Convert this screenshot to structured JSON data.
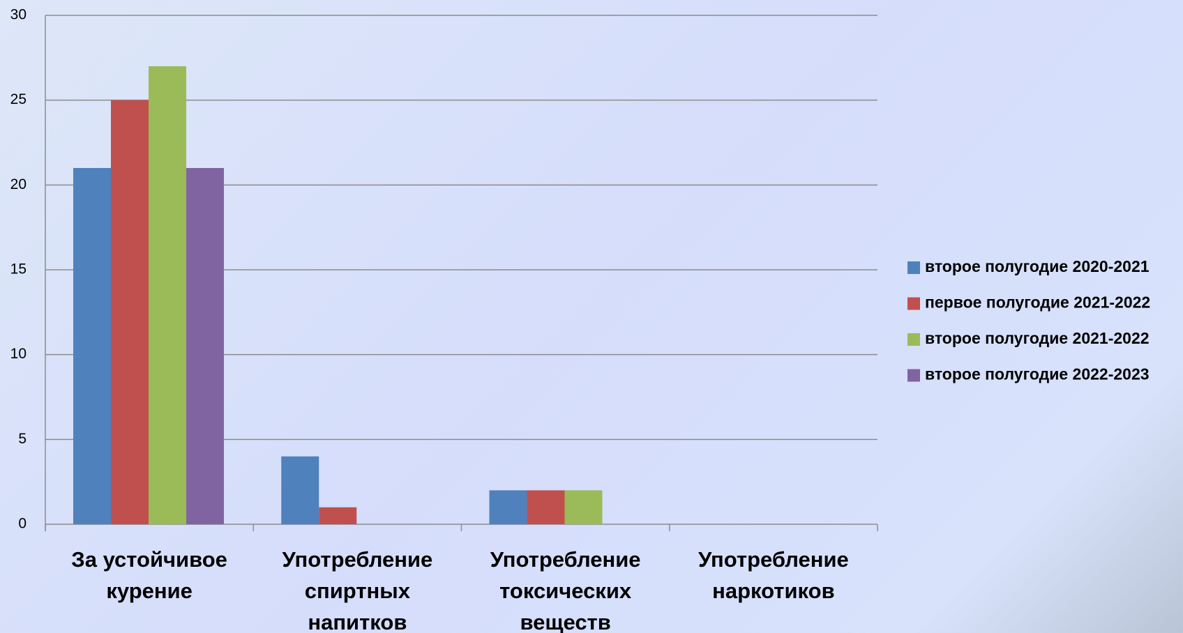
{
  "chart_data": {
    "type": "bar",
    "categories": [
      "За устойчивое курение",
      "Употребление спиртных напитков",
      "Употребление токсических веществ",
      "Употребление наркотиков"
    ],
    "series": [
      {
        "name": "второе полугодие 2020-2021",
        "color": "#4f81bd",
        "values": [
          21,
          4,
          2,
          0
        ]
      },
      {
        "name": "первое полугодие 2021-2022",
        "color": "#c0504d",
        "values": [
          25,
          1,
          2,
          0
        ]
      },
      {
        "name": "второе полугодие 2021-2022",
        "color": "#9bbb59",
        "values": [
          27,
          0,
          2,
          0
        ]
      },
      {
        "name": "второе полугодие 2022-2023",
        "color": "#8064a2",
        "values": [
          21,
          0,
          0,
          0
        ]
      }
    ],
    "ylim": [
      0,
      30
    ],
    "yticks": [
      0,
      5,
      10,
      15,
      20,
      25,
      30
    ],
    "grid": true,
    "legend": "right"
  }
}
